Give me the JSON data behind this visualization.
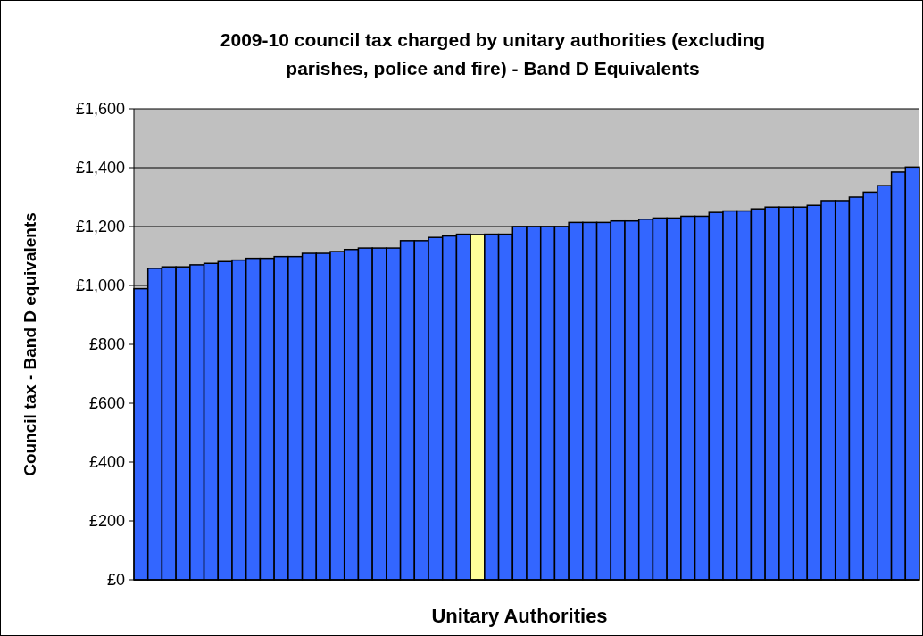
{
  "chart_data": {
    "type": "bar",
    "title": "2009-10 council tax charged by unitary authorities (excluding parishes, police and fire) - Band D Equivalents",
    "xlabel": "Unitary Authorities",
    "ylabel": "Council tax - Band D equivalents",
    "categories": [
      null,
      null,
      null,
      null,
      null,
      null,
      null,
      null,
      null,
      null,
      null,
      null,
      null,
      null,
      null,
      null,
      null,
      null,
      null,
      null,
      null,
      null,
      null,
      null,
      null,
      null,
      null,
      null,
      null,
      null,
      null,
      null,
      null,
      null,
      null,
      null,
      null,
      null,
      null,
      null,
      null,
      null,
      null,
      null,
      null,
      null,
      null,
      null,
      null,
      null,
      null,
      null,
      null,
      null,
      null,
      null
    ],
    "values": [
      989,
      1058,
      1063,
      1063,
      1070,
      1075,
      1081,
      1086,
      1092,
      1092,
      1098,
      1098,
      1109,
      1109,
      1115,
      1122,
      1127,
      1127,
      1127,
      1152,
      1152,
      1163,
      1168,
      1174,
      1173,
      1174,
      1174,
      1200,
      1200,
      1200,
      1200,
      1214,
      1214,
      1214,
      1219,
      1219,
      1225,
      1229,
      1229,
      1235,
      1235,
      1248,
      1253,
      1253,
      1260,
      1266,
      1266,
      1266,
      1272,
      1288,
      1288,
      1300,
      1317,
      1339,
      1385,
      1402
    ],
    "colors": [
      "#3366ff",
      "#3366ff",
      "#3366ff",
      "#3366ff",
      "#3366ff",
      "#3366ff",
      "#3366ff",
      "#3366ff",
      "#3366ff",
      "#3366ff",
      "#3366ff",
      "#3366ff",
      "#3366ff",
      "#3366ff",
      "#3366ff",
      "#3366ff",
      "#3366ff",
      "#3366ff",
      "#3366ff",
      "#3366ff",
      "#3366ff",
      "#3366ff",
      "#3366ff",
      "#3366ff",
      "#ffff99",
      "#3366ff",
      "#3366ff",
      "#3366ff",
      "#3366ff",
      "#3366ff",
      "#3366ff",
      "#3366ff",
      "#3366ff",
      "#3366ff",
      "#3366ff",
      "#3366ff",
      "#3366ff",
      "#3366ff",
      "#3366ff",
      "#3366ff",
      "#3366ff",
      "#3366ff",
      "#3366ff",
      "#3366ff",
      "#3366ff",
      "#3366ff",
      "#3366ff",
      "#3366ff",
      "#3366ff",
      "#3366ff",
      "#3366ff",
      "#3366ff",
      "#3366ff",
      "#3366ff",
      "#3366ff",
      "#3366ff"
    ],
    "ylim": [
      0,
      1600
    ],
    "yticks": [
      {
        "value": 0,
        "label": "£0"
      },
      {
        "value": 200,
        "label": "£200"
      },
      {
        "value": 400,
        "label": "£400"
      },
      {
        "value": 600,
        "label": "£600"
      },
      {
        "value": 800,
        "label": "£800"
      },
      {
        "value": 1000,
        "label": "£1,000"
      },
      {
        "value": 1200,
        "label": "£1,200"
      },
      {
        "value": 1400,
        "label": "£1,400"
      },
      {
        "value": 1600,
        "label": "£1,600"
      }
    ],
    "grid": "y"
  }
}
